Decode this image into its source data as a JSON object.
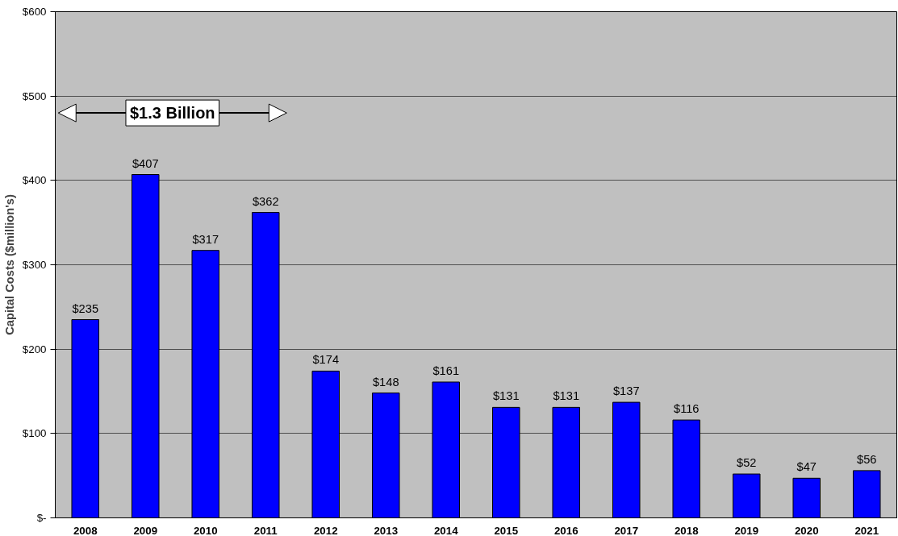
{
  "chart_data": {
    "type": "bar",
    "ylabel": "Capital Costs ($million's)",
    "categories": [
      "2008",
      "2009",
      "2010",
      "2011",
      "2012",
      "2013",
      "2014",
      "2015",
      "2016",
      "2017",
      "2018",
      "2019",
      "2020",
      "2021"
    ],
    "values": [
      235,
      407,
      317,
      362,
      174,
      148,
      161,
      131,
      131,
      137,
      116,
      52,
      47,
      56
    ],
    "value_labels": [
      "$235",
      "$407",
      "$317",
      "$362",
      "$174",
      "$148",
      "$161",
      "$131",
      "$131",
      "$137",
      "$116",
      "$52",
      "$47",
      "$56"
    ],
    "color": "#0000ff",
    "ylim": [
      0,
      600
    ],
    "yticks": [
      {
        "value": 0,
        "label": "$-"
      },
      {
        "value": 100,
        "label": "$100"
      },
      {
        "value": 200,
        "label": "$200"
      },
      {
        "value": 300,
        "label": "$300"
      },
      {
        "value": 400,
        "label": "$400"
      },
      {
        "value": 500,
        "label": "$500"
      },
      {
        "value": 600,
        "label": "$600"
      }
    ],
    "grid": "y",
    "annotations": [
      "$1.3 Billion"
    ]
  }
}
